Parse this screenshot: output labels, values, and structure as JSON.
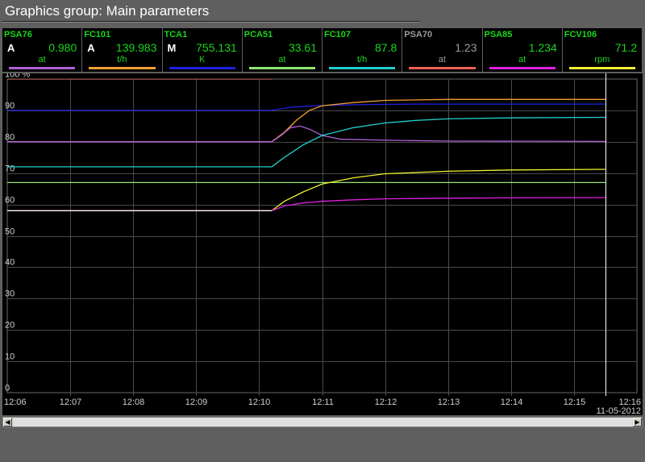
{
  "window": {
    "title": "Graphics group: Main parameters"
  },
  "parameters": [
    {
      "name": "PSA76",
      "mode": "A",
      "value": "0.980",
      "unit": "at",
      "color": "#b060d8",
      "active": true
    },
    {
      "name": "FC101",
      "mode": "A",
      "value": "139.983",
      "unit": "t/h",
      "color": "#f0a030",
      "active": true
    },
    {
      "name": "TCA1",
      "mode": "M",
      "value": "755.131",
      "unit": "K",
      "color": "#2020e0",
      "active": true
    },
    {
      "name": "PCA51",
      "mode": "",
      "value": "33.61",
      "unit": "at",
      "color": "#90e870",
      "active": true
    },
    {
      "name": "FC107",
      "mode": "",
      "value": "87.8",
      "unit": "t/h",
      "color": "#20d0d0",
      "active": true
    },
    {
      "name": "PSA70",
      "mode": "",
      "value": "1.23",
      "unit": "at",
      "color": "#f06050",
      "active": false
    },
    {
      "name": "PSA85",
      "mode": "",
      "value": "1.234",
      "unit": "at",
      "color": "#e020e0",
      "active": true
    },
    {
      "name": "FCV106",
      "mode": "",
      "value": "71.2",
      "unit": "rpm",
      "color": "#f0f030",
      "active": true
    }
  ],
  "chart_data": {
    "type": "line",
    "y_tick_labels": [
      "100 %",
      "90",
      "80",
      "70",
      "60",
      "50",
      "40",
      "30",
      "20",
      "10",
      "0"
    ],
    "x_tick_labels": [
      "12:06",
      "12:07",
      "12:08",
      "12:09",
      "12:10",
      "12:11",
      "12:12",
      "12:13",
      "12:14",
      "12:15",
      "12:16"
    ],
    "date_label": "11-05-2012",
    "ylim": [
      0,
      100
    ],
    "xlim": [
      0,
      10
    ],
    "grid": true,
    "cursor_x": 9.5,
    "series": [
      {
        "color": "#f06050",
        "x": [
          0,
          4.2,
          4.35,
          4.55,
          4.7
        ],
        "y": [
          100,
          100,
          101,
          103,
          105
        ]
      },
      {
        "color": "#2020e0",
        "x": [
          0,
          4.2,
          4.5,
          4.9,
          5.5,
          6.5,
          9.5
        ],
        "y": [
          90,
          90,
          91,
          91.5,
          91.8,
          92,
          92
        ]
      },
      {
        "color": "#f0a030",
        "x": [
          0,
          4.2,
          4.4,
          4.6,
          4.8,
          5.0,
          5.5,
          6.0,
          7.0,
          9.5
        ],
        "y": [
          80,
          80,
          83,
          87,
          90,
          91.5,
          92.5,
          93.2,
          93.5,
          93.5
        ]
      },
      {
        "color": "#b060d8",
        "x": [
          0,
          4.2,
          4.35,
          4.5,
          4.65,
          4.8,
          5.0,
          5.3,
          6.0,
          7.0,
          9.5
        ],
        "y": [
          80,
          80,
          82,
          84.5,
          85,
          84,
          82,
          80.8,
          80.5,
          80.2,
          80.1
        ]
      },
      {
        "color": "#20d0d0",
        "x": [
          0,
          4.2,
          4.4,
          4.7,
          5.0,
          5.5,
          6.0,
          6.5,
          7.0,
          8.0,
          9.5
        ],
        "y": [
          72,
          72,
          75,
          79,
          82,
          84.5,
          86,
          86.8,
          87.3,
          87.6,
          87.8
        ]
      },
      {
        "color": "#90e870",
        "x": [
          0,
          9.5
        ],
        "y": [
          67,
          67
        ]
      },
      {
        "color": "#f0f030",
        "x": [
          0,
          4.2,
          4.4,
          4.7,
          5.0,
          5.5,
          6.0,
          7.0,
          8.0,
          9.5
        ],
        "y": [
          58,
          58,
          61,
          64,
          66.5,
          68.5,
          69.8,
          70.6,
          71,
          71.2
        ]
      },
      {
        "color": "#e020e0",
        "x": [
          0,
          4.2,
          4.4,
          4.7,
          5.0,
          5.5,
          6.0,
          7.0,
          8.0,
          9.5
        ],
        "y": [
          58,
          58,
          59.5,
          60.5,
          61,
          61.5,
          61.8,
          62,
          62.1,
          62.2
        ]
      },
      {
        "color": "#ffffff",
        "x": [
          0,
          4.2
        ],
        "y": [
          58,
          58
        ]
      }
    ]
  }
}
